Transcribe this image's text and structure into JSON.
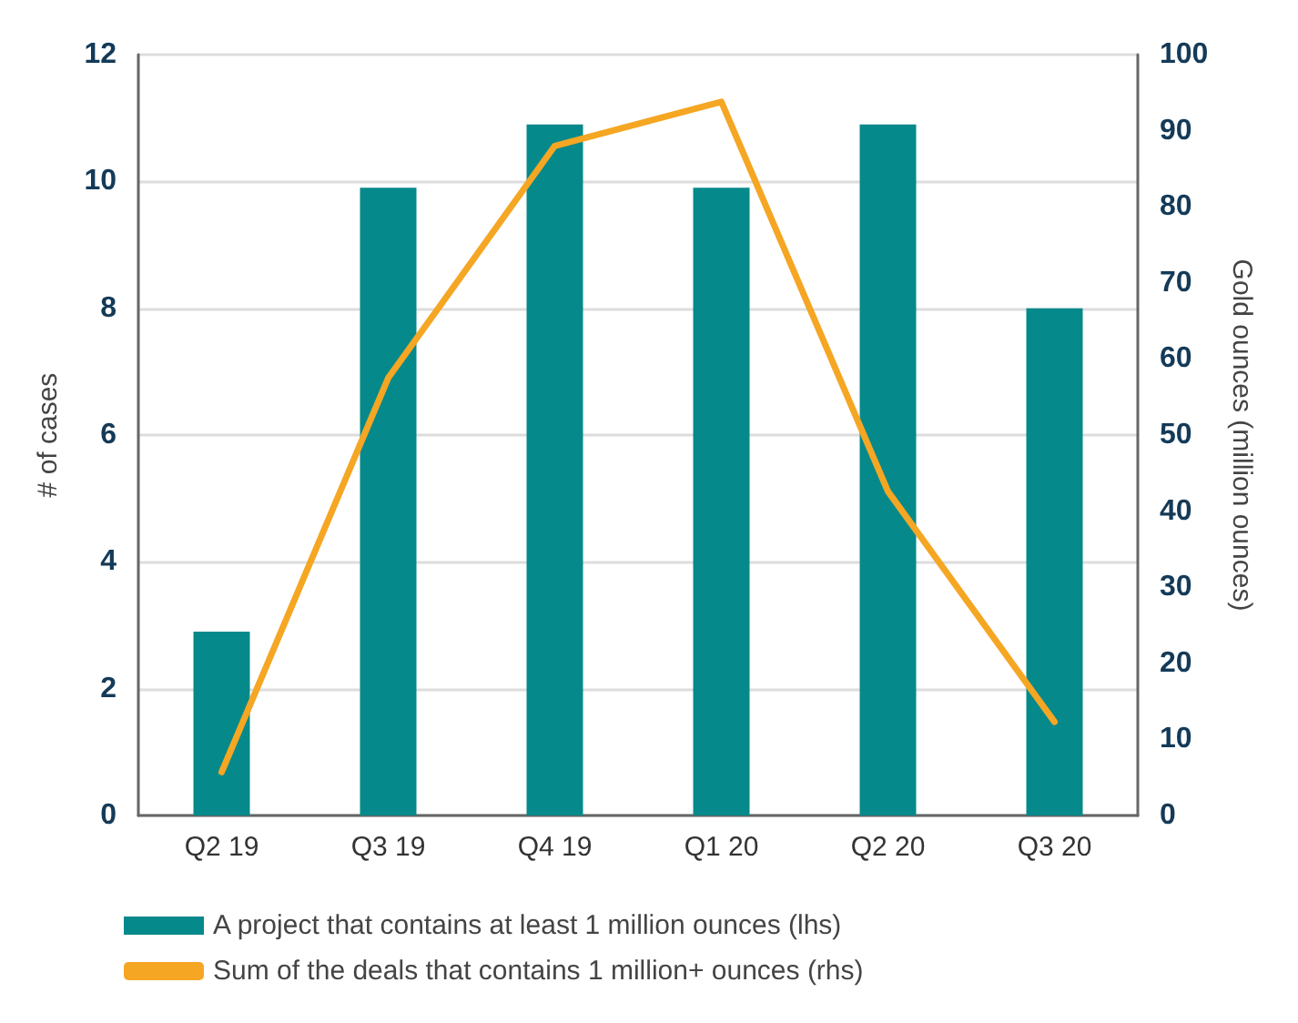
{
  "chart_data": {
    "type": "bar",
    "ylabel": "# of cases",
    "y2label": "Gold ounces (million ounces)",
    "categories": [
      "Q2 19",
      "Q3 19",
      "Q4 19",
      "Q1 20",
      "Q2 20",
      "Q3 20"
    ],
    "series": [
      {
        "name": "A project that contains at least 1 million ounces (lhs)",
        "color": "#06898a",
        "values": [
          2.9,
          9.9,
          10.9,
          9.9,
          10.9,
          8.0
        ]
      },
      {
        "name": "Sum of the deals that contains 1 million+ ounces (rhs)",
        "type": "line",
        "axis": "y2",
        "color": "#f5a623",
        "values": [
          5.7,
          57.5,
          88,
          93.8,
          42.6,
          12.3
        ]
      }
    ],
    "ylim": [
      0,
      12
    ],
    "yticks": [
      0,
      2,
      4,
      6,
      8,
      10,
      12
    ],
    "y2lim": [
      0,
      100
    ],
    "y2ticks": [
      0,
      10,
      20,
      30,
      40,
      50,
      60,
      70,
      80,
      90,
      100
    ],
    "grid": "y",
    "legend": "bottom",
    "marker": "none",
    "line_style": "solid"
  }
}
